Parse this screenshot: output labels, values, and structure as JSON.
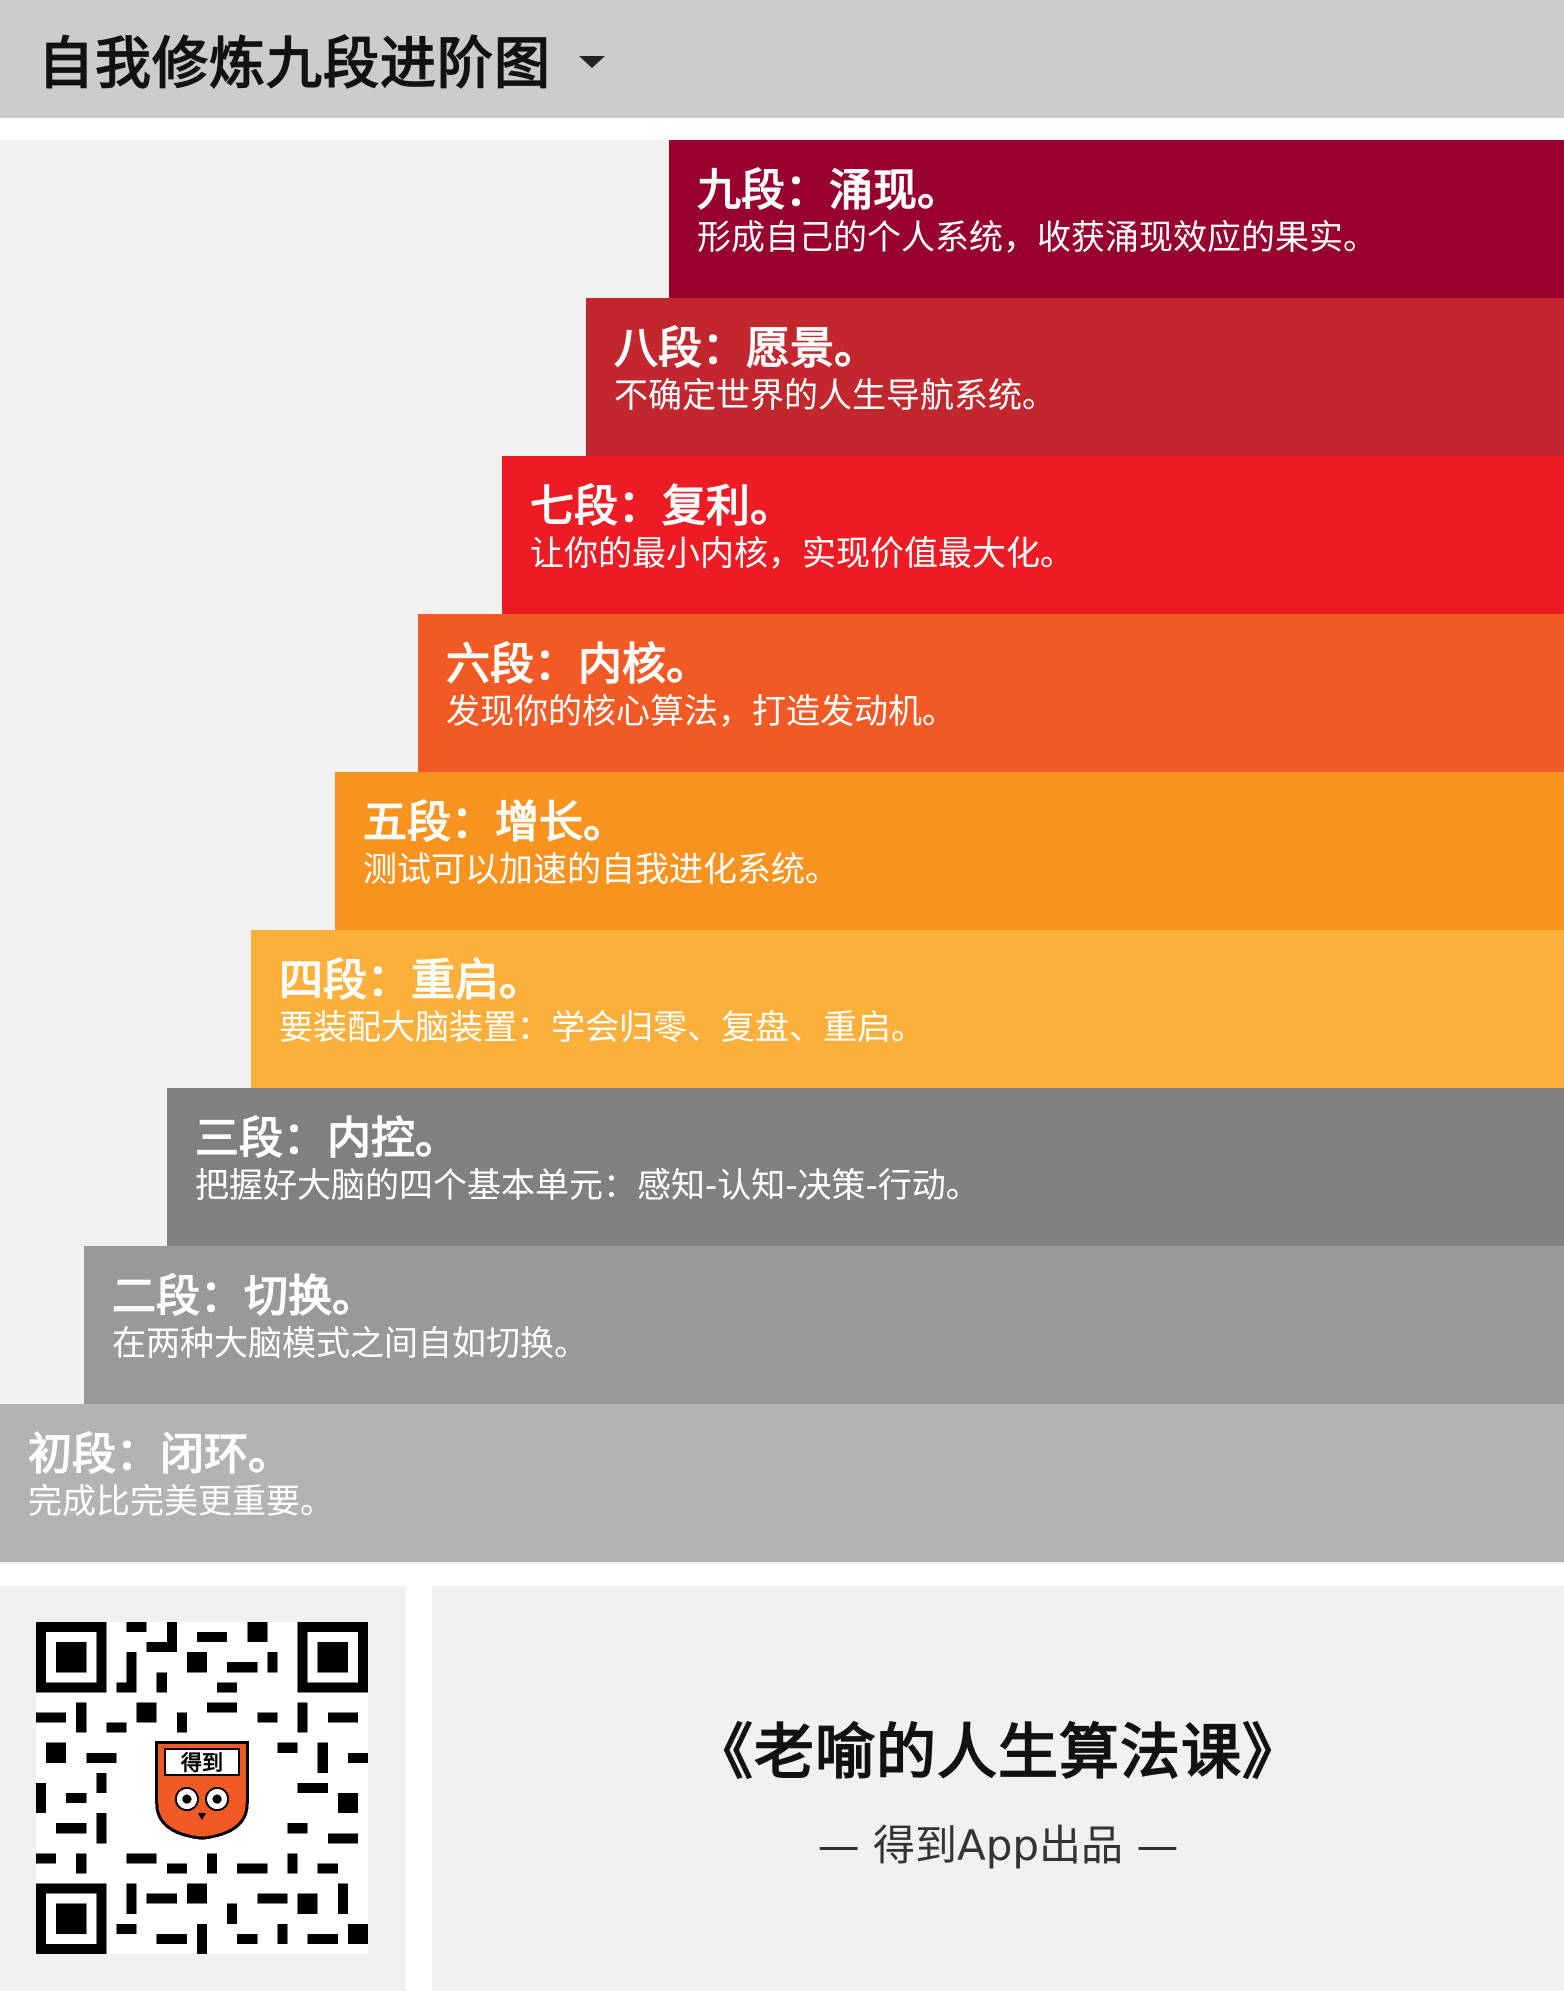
{
  "header": {
    "title": "自我修炼九段进阶图",
    "dropdown_icon": "caret-down-icon"
  },
  "steps": [
    {
      "title": "九段：涌现。",
      "desc": "形成自己的个人系统，收获涌现效应的果实。",
      "color": "#98002e"
    },
    {
      "title": "八段：愿景。",
      "desc": "不确定世界的人生导航系统。",
      "color": "#c1272d"
    },
    {
      "title": "七段：复利。",
      "desc": "让你的最小内核，实现价值最大化。",
      "color": "#ed1c24"
    },
    {
      "title": "六段：内核。",
      "desc": "发现你的核心算法，打造发动机。",
      "color": "#f15a24"
    },
    {
      "title": "五段：增长。",
      "desc": "测试可以加速的自我进化系统。",
      "color": "#f7931e"
    },
    {
      "title": "四段：重启。",
      "desc": "要装配大脑装置：学会归零、复盘、重启。",
      "color": "#fbb03b"
    },
    {
      "title": "三段：内控。",
      "desc": "把握好大脑的四个基本单元：感知-认知-决策-行动。",
      "color": "#808080"
    },
    {
      "title": "二段：切换。",
      "desc": "在两种大脑模式之间自如切换。",
      "color": "#999999"
    },
    {
      "title": "初段：闭环。",
      "desc": "完成比完美更重要。",
      "color": "#b3b3b3"
    }
  ],
  "footer": {
    "course_title": "《老喻的人生算法课》",
    "subtitle": "— 得到App出品 —",
    "qr_icon": "qr-code-icon",
    "logo_text": "得到",
    "logo_color": "#f15a24"
  }
}
